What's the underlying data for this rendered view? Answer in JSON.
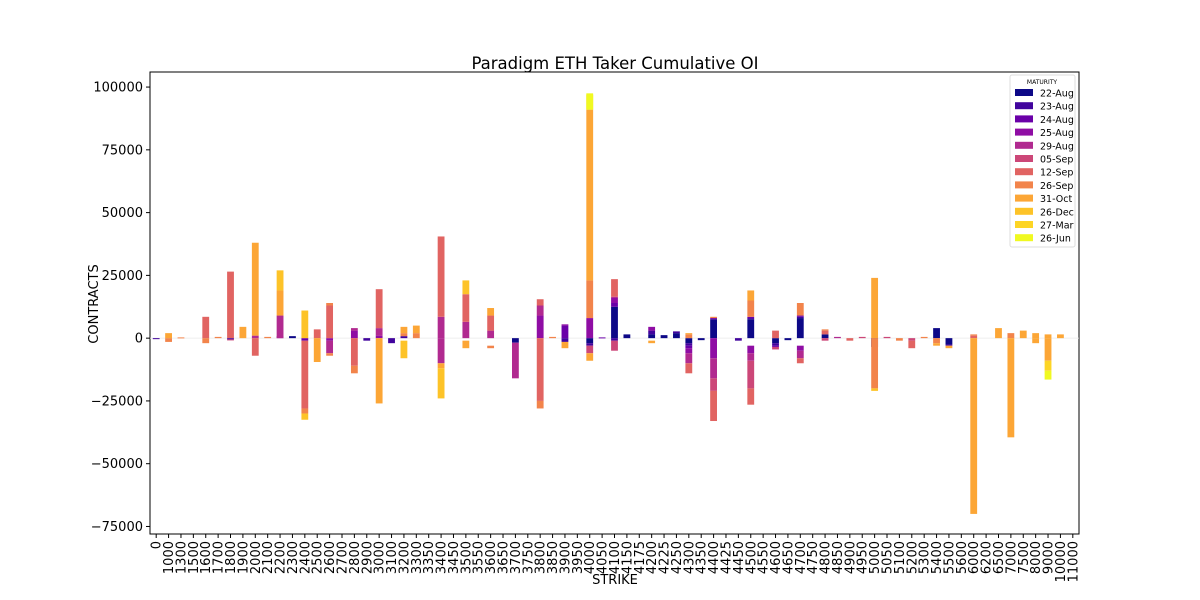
{
  "chart_data": {
    "type": "bar",
    "stacked": true,
    "title": "Paradigm ETH Taker Cumulative OI",
    "xlabel": "STRIKE",
    "ylabel": "CONTRACTS",
    "ylim": [
      -78000,
      106000
    ],
    "yticks": [
      -75000,
      -50000,
      -25000,
      0,
      25000,
      50000,
      75000,
      100000
    ],
    "ytick_labels": [
      "−75000",
      "−50000",
      "−25000",
      "0",
      "25000",
      "50000",
      "75000",
      "100000"
    ],
    "grid": false,
    "legend": {
      "title": "MATURITY",
      "position": "top-right"
    },
    "categories": [
      "0",
      "1000",
      "1300",
      "1500",
      "1600",
      "1700",
      "1800",
      "1900",
      "2000",
      "2100",
      "2200",
      "2300",
      "2400",
      "2500",
      "2600",
      "2700",
      "2800",
      "2900",
      "3000",
      "3100",
      "3200",
      "3300",
      "3350",
      "3400",
      "3450",
      "3500",
      "3550",
      "3600",
      "3650",
      "3700",
      "3750",
      "3800",
      "3850",
      "3900",
      "3950",
      "4000",
      "4050",
      "4100",
      "4150",
      "4175",
      "4200",
      "4225",
      "4250",
      "4300",
      "4350",
      "4400",
      "4425",
      "4450",
      "4500",
      "4550",
      "4600",
      "4650",
      "4700",
      "4750",
      "4800",
      "4850",
      "4900",
      "4950",
      "5000",
      "5050",
      "5100",
      "5200",
      "5300",
      "5400",
      "5500",
      "5600",
      "6000",
      "6200",
      "6500",
      "7000",
      "7500",
      "8000",
      "9000",
      "10000",
      "11000"
    ],
    "series": [
      {
        "name": "22-Aug",
        "color": "#0d0887",
        "segments": {
          "2300": [
            0,
            800
          ],
          "3700": [
            0,
            -1800
          ],
          "4000": [
            0,
            -2000
          ],
          "4100": [
            0,
            12500
          ],
          "4150": [
            0,
            1500
          ],
          "4200": [
            0,
            1500
          ],
          "4225": [
            0,
            1200
          ],
          "4250": [
            0,
            2000
          ],
          "4300": [
            0,
            -2000
          ],
          "4350": [
            0,
            -800
          ],
          "4400": [
            0,
            7500
          ],
          "4500": [
            0,
            7500
          ],
          "4600": [
            0,
            -2000
          ],
          "4650": [
            0,
            -800
          ],
          "4700": [
            0,
            8000
          ],
          "4800": [
            0,
            1500
          ],
          "5000": [
            0,
            -3500
          ],
          "5400": [
            0,
            4000
          ],
          "5500": [
            0,
            -2500
          ]
        }
      },
      {
        "name": "23-Aug",
        "color": "#41049d",
        "segments": {
          "0": [
            0,
            -300
          ],
          "1800": [
            0,
            -500
          ],
          "2900": [
            0,
            -1000
          ],
          "3100": [
            0,
            -2000
          ],
          "3200": [
            0,
            800
          ],
          "3900": [
            0,
            -1500
          ],
          "4000": [
            -2000,
            -3000
          ],
          "4100": [
            0,
            -1000
          ],
          "4200": [
            1500,
            3000
          ],
          "4250": [
            2000,
            2700
          ],
          "4300": [
            -2000,
            -3000
          ],
          "4450": [
            0,
            -1000
          ],
          "4500": [
            7500,
            8000
          ],
          "4600": [
            -2000,
            -3000
          ],
          "4700": [
            8000,
            8500
          ],
          "5500": [
            -2500,
            -3000
          ]
        }
      },
      {
        "name": "24-Aug",
        "color": "#6a00a8",
        "segments": {
          "2400": [
            0,
            -1000
          ],
          "3900": [
            0,
            5000
          ],
          "4050": [
            0,
            300
          ],
          "4100": [
            12500,
            14000
          ],
          "4300": [
            -3000,
            -4000
          ],
          "4400": [
            7500,
            8000
          ],
          "4500": [
            8000,
            8500
          ],
          "4600": [
            -3000,
            -3500
          ],
          "4700": [
            8500,
            9000
          ]
        }
      },
      {
        "name": "25-Aug",
        "color": "#8f0da4",
        "segments": {
          "2200": [
            0,
            800
          ],
          "2600": [
            0,
            -1000
          ],
          "2800": [
            0,
            3000
          ],
          "3000": [
            0,
            1000
          ],
          "3800": [
            0,
            9000
          ],
          "3900": [
            5000,
            5500
          ],
          "4000": [
            0,
            8000
          ],
          "4100": [
            14000,
            16000
          ],
          "4200": [
            3000,
            4500
          ],
          "4300": [
            -4000,
            -6000
          ],
          "4400": [
            0,
            -8000
          ],
          "4500": [
            -3000,
            -6000
          ],
          "4700": [
            -3000,
            -5000
          ]
        }
      },
      {
        "name": "29-Aug",
        "color": "#b12a90",
        "segments": {
          "2000": [
            0,
            1000
          ],
          "2200": [
            0,
            9000
          ],
          "2600": [
            -1000,
            -6000
          ],
          "2800": [
            3000,
            4000
          ],
          "3000": [
            1000,
            4000
          ],
          "3400": [
            0,
            8500
          ],
          "3400_neg": [
            0,
            -10000
          ],
          "3500": [
            0,
            6500
          ],
          "3600": [
            0,
            3000
          ],
          "3700": [
            -1800,
            -16000
          ],
          "3800": [
            9000,
            13000
          ],
          "4100": [
            16000,
            16500
          ],
          "4300": [
            -6000,
            -10000
          ],
          "4400": [
            -8000,
            -16000
          ],
          "4500": [
            -6000,
            -9000
          ],
          "4700": [
            -5000,
            -8000
          ],
          "4850": [
            0,
            500
          ]
        }
      },
      {
        "name": "05-Sep",
        "color": "#cc4778",
        "segments": {
          "1800": [
            -500,
            -700
          ],
          "4000": [
            -3000,
            -6000
          ],
          "4100": [
            -1000,
            -5000
          ],
          "4400": [
            -16000,
            -21000
          ],
          "4500": [
            -9000,
            -20000
          ],
          "4600": [
            -3500,
            -4500
          ],
          "4800": [
            0,
            -1000
          ],
          "4950": [
            0,
            500
          ],
          "5050": [
            0,
            500
          ],
          "5200": [
            0,
            -1000
          ]
        }
      },
      {
        "name": "12-Sep",
        "color": "#e16462",
        "segments": {
          "1600": [
            0,
            8500
          ],
          "1800": [
            0,
            26500
          ],
          "2000": [
            0,
            -7000
          ],
          "2400": [
            -1000,
            -28000
          ],
          "2500": [
            0,
            3500
          ],
          "2600": [
            0,
            13000
          ],
          "2800": [
            0,
            -11000
          ],
          "3000": [
            4000,
            19500
          ],
          "3400": [
            8500,
            40500
          ],
          "3500": [
            6500,
            17500
          ],
          "3600": [
            3000,
            9000
          ],
          "3800": [
            13000,
            15500
          ],
          "3800_neg": [
            0,
            -25000
          ],
          "4100": [
            16500,
            23500
          ],
          "4300": [
            -10000,
            -14000
          ],
          "4400": [
            -21000,
            -33000
          ],
          "4500": [
            -20000,
            -26500
          ],
          "4600": [
            0,
            3000
          ],
          "4700": [
            -8000,
            -10000
          ],
          "4800": [
            1500,
            3000
          ],
          "4900": [
            0,
            -1000
          ],
          "5200": [
            -1000,
            -4000
          ],
          "6000": [
            0,
            1000
          ]
        }
      },
      {
        "name": "26-Sep",
        "color": "#f2844b",
        "segments": {
          "1000": [
            0,
            -1500
          ],
          "1300": [
            0,
            300
          ],
          "1600": [
            0,
            -2000
          ],
          "1700": [
            0,
            500
          ],
          "2100": [
            0,
            500
          ],
          "2400": [
            -28000,
            -30000
          ],
          "2600": [
            13000,
            14000
          ],
          "2600_neg": [
            -6000,
            -7000
          ],
          "2800": [
            -11000,
            -14000
          ],
          "3200": [
            800,
            2000
          ],
          "3300": [
            0,
            2000
          ],
          "3600": [
            -3000,
            -4000
          ],
          "3800": [
            -25000,
            -28000
          ],
          "3850": [
            0,
            500
          ],
          "4000": [
            8000,
            23000
          ],
          "4300": [
            0,
            1500
          ],
          "4400": [
            8000,
            8500
          ],
          "4500": [
            8500,
            15000
          ],
          "4700": [
            9000,
            14000
          ],
          "4800": [
            3000,
            3500
          ],
          "5000": [
            0,
            -20000
          ],
          "5100": [
            0,
            -1000
          ],
          "5300": [
            0,
            500
          ],
          "5400": [
            0,
            -2000
          ],
          "6000": [
            1000,
            1500
          ],
          "7000": [
            0,
            2000
          ]
        }
      },
      {
        "name": "31-Oct",
        "color": "#fca636",
        "segments": {
          "1000": [
            0,
            2000
          ],
          "1900": [
            0,
            4500
          ],
          "2000": [
            1000,
            38000
          ],
          "2200": [
            9000,
            19000
          ],
          "2500": [
            0,
            -9500
          ],
          "3000": [
            0,
            -26000
          ],
          "3200": [
            2000,
            4500
          ],
          "3300": [
            2000,
            5000
          ],
          "3400": [
            -10000,
            -12000
          ],
          "3500": [
            -1000,
            -4000
          ],
          "3600": [
            9000,
            12000
          ],
          "3900": [
            -1500,
            -4000
          ],
          "4000": [
            23000,
            91000
          ],
          "4000_neg": [
            -6000,
            -9000
          ],
          "4200": [
            -1000,
            -2000
          ],
          "4300": [
            1500,
            2000
          ],
          "4500": [
            15000,
            19000
          ],
          "5000": [
            0,
            24000
          ],
          "5400": [
            -2000,
            -3000
          ],
          "5500": [
            -3000,
            -4000
          ],
          "6000": [
            0,
            -70000
          ],
          "6500": [
            0,
            4000
          ],
          "7000": [
            0,
            -39500
          ],
          "7500": [
            0,
            3000
          ],
          "8000": [
            0,
            2000
          ],
          "8000_neg": [
            0,
            -2000
          ],
          "9000": [
            0,
            1500
          ],
          "9000_neg": [
            0,
            -9000
          ],
          "10000": [
            0,
            1500
          ]
        }
      },
      {
        "name": "26-Dec",
        "color": "#fdc328",
        "segments": {
          "2200": [
            19000,
            27000
          ],
          "2400": [
            -30000,
            -32500
          ],
          "2400_pos": [
            0,
            11000
          ],
          "3200": [
            -1000,
            -8000
          ],
          "3400": [
            -12000,
            -24000
          ],
          "3500": [
            17500,
            23000
          ],
          "4000": [
            91000,
            97000
          ],
          "5000": [
            -20000,
            -21000
          ]
        }
      },
      {
        "name": "27-Mar",
        "color": "#fdd525",
        "segments": {
          "9000": [
            -9000,
            -13000
          ]
        }
      },
      {
        "name": "26-Jun",
        "color": "#f0f921",
        "segments": {
          "4000": [
            91000,
            97500
          ],
          "9000": [
            -13000,
            -16500
          ]
        }
      }
    ]
  }
}
